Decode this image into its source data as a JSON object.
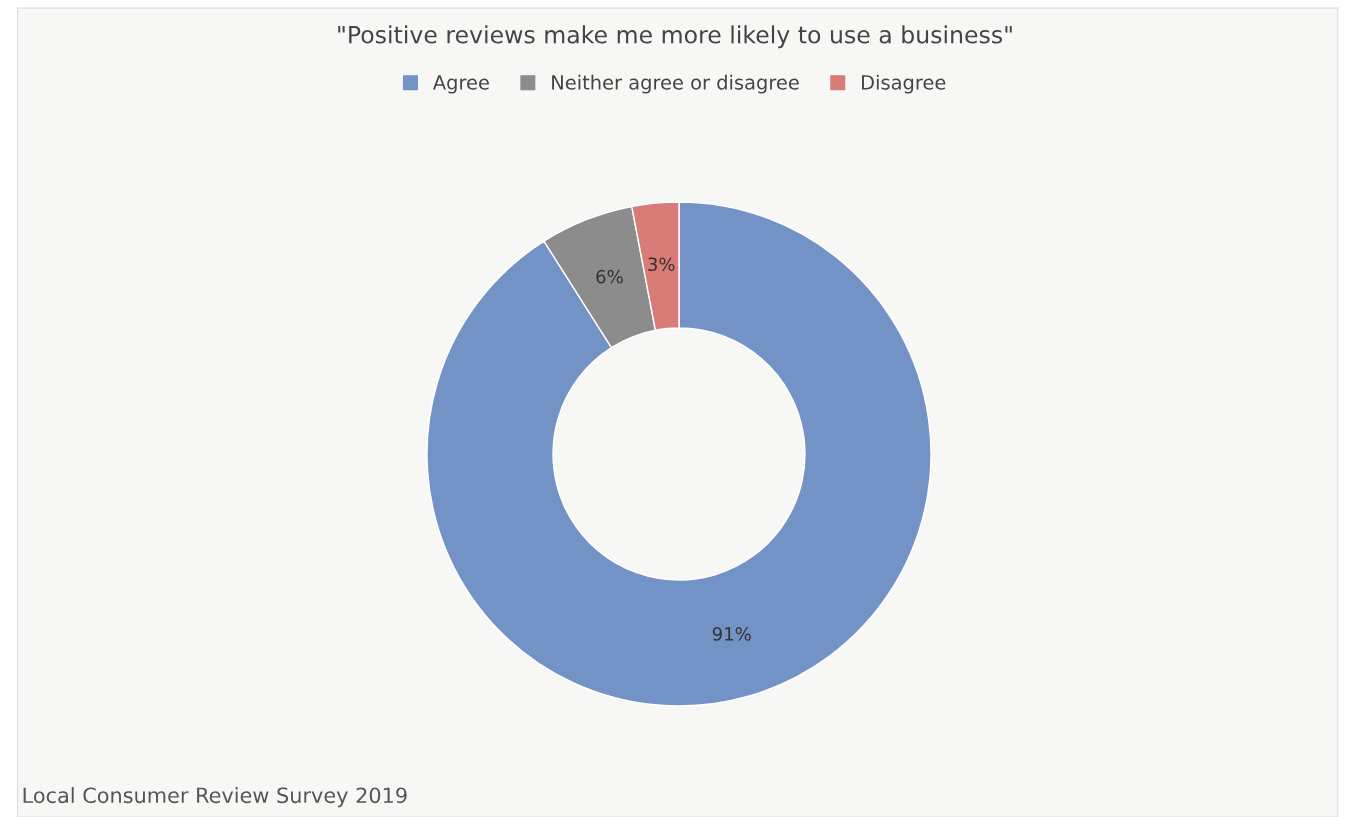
{
  "chart_data": {
    "type": "donut",
    "title": "\"Positive reviews make me more likely to use a business\"",
    "categories": [
      "Agree",
      "Neither agree or disagree",
      "Disagree"
    ],
    "values": [
      91,
      6,
      3
    ],
    "colors": [
      "#7393c7",
      "#8c8c8c",
      "#d97b77"
    ],
    "value_labels": [
      "91%",
      "6%",
      "3%"
    ],
    "legend": "top",
    "annotations": [
      "Local Consumer Review Survey 2019"
    ]
  }
}
